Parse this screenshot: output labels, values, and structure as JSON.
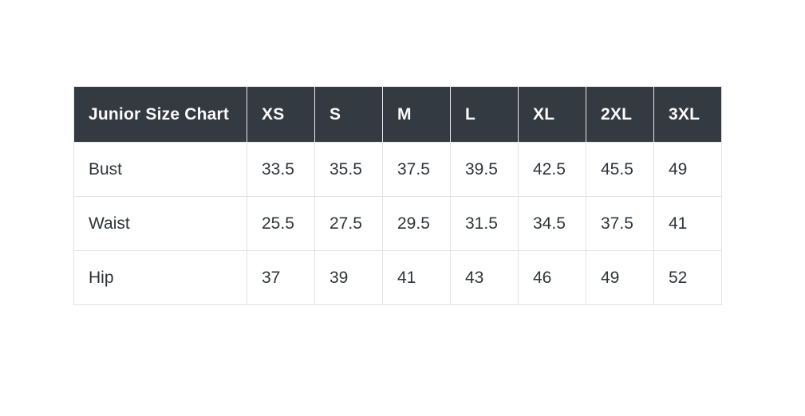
{
  "chart_data": {
    "type": "table",
    "title": "Junior Size Chart",
    "columns": [
      "XS",
      "S",
      "M",
      "L",
      "XL",
      "2XL",
      "3XL"
    ],
    "rows": [
      {
        "label": "Bust",
        "values": [
          33.5,
          35.5,
          37.5,
          39.5,
          42.5,
          45.5,
          49
        ]
      },
      {
        "label": "Waist",
        "values": [
          25.5,
          27.5,
          29.5,
          31.5,
          34.5,
          37.5,
          41
        ]
      },
      {
        "label": "Hip",
        "values": [
          37,
          39,
          41,
          43,
          46,
          49,
          52
        ]
      }
    ]
  },
  "colors": {
    "page_bg": "#ffffff",
    "header_bg": "#343a42",
    "header_text": "#fbfbfc",
    "body_text": "#2f343a",
    "border": "#e0e2e6"
  }
}
